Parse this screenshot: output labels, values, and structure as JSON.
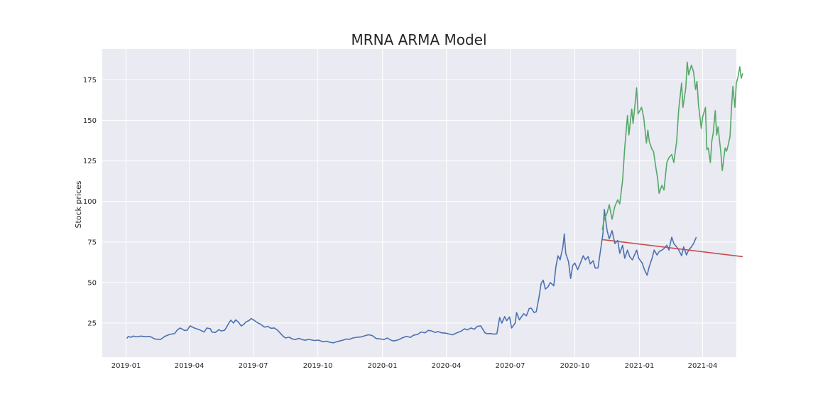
{
  "chart_data": {
    "type": "line",
    "title": "MRNA ARMA Model",
    "xlabel": "",
    "ylabel": "Stock prices",
    "x_axis": "date",
    "xlim": [
      "2018-11-28",
      "2021-05-19"
    ],
    "ylim": [
      4.0,
      194.0
    ],
    "y_ticks": [
      25,
      50,
      75,
      100,
      125,
      150,
      175
    ],
    "x_ticks": [
      "2019-01",
      "2019-04",
      "2019-07",
      "2019-10",
      "2020-01",
      "2020-04",
      "2020-07",
      "2020-10",
      "2021-01",
      "2021-04"
    ],
    "grid": true,
    "background": "#EAEAF2",
    "series": [
      {
        "color": "#4C72B0",
        "points": [
          [
            "2019-01-02",
            15.5
          ],
          [
            "2019-01-04",
            16.8
          ],
          [
            "2019-01-08",
            16.2
          ],
          [
            "2019-01-11",
            17.0
          ],
          [
            "2019-01-16",
            16.5
          ],
          [
            "2019-01-22",
            17.0
          ],
          [
            "2019-01-28",
            16.6
          ],
          [
            "2019-02-04",
            16.8
          ],
          [
            "2019-02-11",
            15.2
          ],
          [
            "2019-02-19",
            14.9
          ],
          [
            "2019-02-25",
            16.8
          ],
          [
            "2019-03-04",
            18.0
          ],
          [
            "2019-03-11",
            18.6
          ],
          [
            "2019-03-15",
            20.8
          ],
          [
            "2019-03-19",
            22.0
          ],
          [
            "2019-03-25",
            20.5
          ],
          [
            "2019-03-29",
            20.6
          ],
          [
            "2019-04-02",
            23.3
          ],
          [
            "2019-04-08",
            22.0
          ],
          [
            "2019-04-15",
            21.0
          ],
          [
            "2019-04-22",
            19.5
          ],
          [
            "2019-04-26",
            22.0
          ],
          [
            "2019-05-01",
            21.5
          ],
          [
            "2019-05-03",
            19.5
          ],
          [
            "2019-05-08",
            19.2
          ],
          [
            "2019-05-13",
            21.0
          ],
          [
            "2019-05-16",
            20.2
          ],
          [
            "2019-05-21",
            20.5
          ],
          [
            "2019-05-23",
            21.8
          ],
          [
            "2019-05-28",
            25.5
          ],
          [
            "2019-05-30",
            26.8
          ],
          [
            "2019-06-03",
            25.0
          ],
          [
            "2019-06-06",
            27.0
          ],
          [
            "2019-06-10",
            25.5
          ],
          [
            "2019-06-14",
            23.2
          ],
          [
            "2019-06-18",
            24.5
          ],
          [
            "2019-06-21",
            25.8
          ],
          [
            "2019-06-25",
            26.6
          ],
          [
            "2019-06-28",
            27.8
          ],
          [
            "2019-07-03",
            26.5
          ],
          [
            "2019-07-08",
            25.0
          ],
          [
            "2019-07-12",
            24.2
          ],
          [
            "2019-07-17",
            22.5
          ],
          [
            "2019-07-22",
            23.0
          ],
          [
            "2019-07-26",
            21.8
          ],
          [
            "2019-07-31",
            22.0
          ],
          [
            "2019-08-05",
            20.5
          ],
          [
            "2019-08-08",
            19.0
          ],
          [
            "2019-08-13",
            16.8
          ],
          [
            "2019-08-16",
            15.8
          ],
          [
            "2019-08-21",
            16.3
          ],
          [
            "2019-08-26",
            15.2
          ],
          [
            "2019-08-30",
            14.8
          ],
          [
            "2019-09-04",
            15.6
          ],
          [
            "2019-09-09",
            14.8
          ],
          [
            "2019-09-13",
            14.4
          ],
          [
            "2019-09-18",
            15.0
          ],
          [
            "2019-09-23",
            14.5
          ],
          [
            "2019-09-27",
            14.3
          ],
          [
            "2019-10-02",
            14.5
          ],
          [
            "2019-10-08",
            13.5
          ],
          [
            "2019-10-14",
            13.8
          ],
          [
            "2019-10-18",
            13.2
          ],
          [
            "2019-10-23",
            12.8
          ],
          [
            "2019-10-28",
            13.5
          ],
          [
            "2019-11-01",
            14.0
          ],
          [
            "2019-11-06",
            14.5
          ],
          [
            "2019-11-11",
            15.2
          ],
          [
            "2019-11-15",
            15.0
          ],
          [
            "2019-11-20",
            15.8
          ],
          [
            "2019-11-25",
            16.2
          ],
          [
            "2019-12-02",
            16.5
          ],
          [
            "2019-12-09",
            17.5
          ],
          [
            "2019-12-13",
            17.8
          ],
          [
            "2019-12-18",
            17.2
          ],
          [
            "2019-12-23",
            15.5
          ],
          [
            "2019-12-30",
            15.2
          ],
          [
            "2020-01-03",
            14.8
          ],
          [
            "2020-01-08",
            15.8
          ],
          [
            "2020-01-13",
            14.5
          ],
          [
            "2020-01-17",
            14.0
          ],
          [
            "2020-01-23",
            14.6
          ],
          [
            "2020-01-29",
            15.8
          ],
          [
            "2020-02-04",
            16.8
          ],
          [
            "2020-02-10",
            16.2
          ],
          [
            "2020-02-14",
            17.5
          ],
          [
            "2020-02-20",
            18.0
          ],
          [
            "2020-02-25",
            19.5
          ],
          [
            "2020-03-02",
            19.0
          ],
          [
            "2020-03-06",
            20.5
          ],
          [
            "2020-03-11",
            20.2
          ],
          [
            "2020-03-16",
            19.2
          ],
          [
            "2020-03-20",
            19.8
          ],
          [
            "2020-03-25",
            19.0
          ],
          [
            "2020-03-31",
            18.8
          ],
          [
            "2020-04-06",
            18.2
          ],
          [
            "2020-04-10",
            17.8
          ],
          [
            "2020-04-16",
            19.0
          ],
          [
            "2020-04-22",
            20.0
          ],
          [
            "2020-04-27",
            21.5
          ],
          [
            "2020-05-01",
            20.8
          ],
          [
            "2020-05-06",
            22.0
          ],
          [
            "2020-05-11",
            21.2
          ],
          [
            "2020-05-15",
            23.0
          ],
          [
            "2020-05-20",
            23.3
          ],
          [
            "2020-05-26",
            19.0
          ],
          [
            "2020-05-29",
            18.5
          ],
          [
            "2020-06-03",
            18.6
          ],
          [
            "2020-06-08",
            18.2
          ],
          [
            "2020-06-12",
            18.5
          ],
          [
            "2020-06-16",
            28.5
          ],
          [
            "2020-06-19",
            25.0
          ],
          [
            "2020-06-23",
            29.0
          ],
          [
            "2020-06-26",
            26.5
          ],
          [
            "2020-06-30",
            28.8
          ],
          [
            "2020-07-03",
            22.0
          ],
          [
            "2020-07-08",
            25.0
          ],
          [
            "2020-07-10",
            31.5
          ],
          [
            "2020-07-14",
            27.0
          ],
          [
            "2020-07-20",
            30.8
          ],
          [
            "2020-07-24",
            29.5
          ],
          [
            "2020-07-28",
            34.0
          ],
          [
            "2020-07-31",
            34.2
          ],
          [
            "2020-08-04",
            31.5
          ],
          [
            "2020-08-07",
            32.0
          ],
          [
            "2020-08-11",
            41.0
          ],
          [
            "2020-08-14",
            49.5
          ],
          [
            "2020-08-17",
            51.5
          ],
          [
            "2020-08-20",
            46.0
          ],
          [
            "2020-08-24",
            47.5
          ],
          [
            "2020-08-27",
            50.0
          ],
          [
            "2020-09-01",
            48.0
          ],
          [
            "2020-09-04",
            59.5
          ],
          [
            "2020-09-07",
            66.5
          ],
          [
            "2020-09-10",
            64.0
          ],
          [
            "2020-09-14",
            72.0
          ],
          [
            "2020-09-16",
            80.0
          ],
          [
            "2020-09-18",
            68.0
          ],
          [
            "2020-09-22",
            63.0
          ],
          [
            "2020-09-25",
            52.5
          ],
          [
            "2020-09-28",
            60.5
          ],
          [
            "2020-10-01",
            62.0
          ],
          [
            "2020-10-05",
            58.0
          ],
          [
            "2020-10-08",
            61.0
          ],
          [
            "2020-10-13",
            66.5
          ],
          [
            "2020-10-16",
            64.0
          ],
          [
            "2020-10-20",
            66.0
          ],
          [
            "2020-10-23",
            61.5
          ],
          [
            "2020-10-27",
            63.5
          ],
          [
            "2020-10-30",
            59.0
          ],
          [
            "2020-11-03",
            59.0
          ],
          [
            "2020-11-06",
            68.0
          ],
          [
            "2020-11-10",
            80.0
          ],
          [
            "2020-11-12",
            95.0
          ],
          [
            "2020-11-16",
            82.0
          ],
          [
            "2020-11-19",
            77.0
          ],
          [
            "2020-11-23",
            82.0
          ],
          [
            "2020-11-27",
            74.0
          ],
          [
            "2020-12-01",
            76.0
          ],
          [
            "2020-12-04",
            68.0
          ],
          [
            "2020-12-08",
            73.0
          ],
          [
            "2020-12-11",
            65.0
          ],
          [
            "2020-12-15",
            70.0
          ],
          [
            "2020-12-18",
            66.0
          ],
          [
            "2020-12-22",
            64.0
          ],
          [
            "2020-12-28",
            70.0
          ],
          [
            "2020-12-31",
            65.0
          ],
          [
            "2021-01-05",
            62.0
          ],
          [
            "2021-01-08",
            58.0
          ],
          [
            "2021-01-12",
            54.5
          ],
          [
            "2021-01-15",
            60.0
          ],
          [
            "2021-01-19",
            65.0
          ],
          [
            "2021-01-22",
            70.0
          ],
          [
            "2021-01-26",
            67.0
          ],
          [
            "2021-01-29",
            69.0
          ],
          [
            "2021-02-02",
            70.0
          ],
          [
            "2021-02-05",
            71.0
          ],
          [
            "2021-02-09",
            73.0
          ],
          [
            "2021-02-12",
            70.0
          ],
          [
            "2021-02-16",
            78.0
          ],
          [
            "2021-02-19",
            74.0
          ],
          [
            "2021-02-23",
            72.0
          ],
          [
            "2021-02-26",
            70.0
          ],
          [
            "2021-03-02",
            66.5
          ],
          [
            "2021-03-05",
            72.0
          ],
          [
            "2021-03-09",
            67.0
          ],
          [
            "2021-03-12",
            70.0
          ],
          [
            "2021-03-16",
            72.0
          ],
          [
            "2021-03-19",
            74.0
          ],
          [
            "2021-03-23",
            78.0
          ]
        ]
      },
      {
        "color": "#55A868",
        "points": [
          [
            "2020-11-09",
            82.5
          ],
          [
            "2020-11-12",
            89.0
          ],
          [
            "2020-11-16",
            93.0
          ],
          [
            "2020-11-19",
            98.0
          ],
          [
            "2020-11-23",
            89.0
          ],
          [
            "2020-11-27",
            97.0
          ],
          [
            "2020-12-01",
            101.0
          ],
          [
            "2020-12-04",
            98.5
          ],
          [
            "2020-12-08",
            113.0
          ],
          [
            "2020-12-11",
            133.0
          ],
          [
            "2020-12-15",
            153.0
          ],
          [
            "2020-12-17",
            141.0
          ],
          [
            "2020-12-21",
            157.0
          ],
          [
            "2020-12-23",
            148.0
          ],
          [
            "2020-12-28",
            170.0
          ],
          [
            "2020-12-30",
            154.0
          ],
          [
            "2021-01-04",
            158.0
          ],
          [
            "2021-01-07",
            152.0
          ],
          [
            "2021-01-11",
            136.0
          ],
          [
            "2021-01-13",
            144.0
          ],
          [
            "2021-01-15",
            137.0
          ],
          [
            "2021-01-19",
            132.0
          ],
          [
            "2021-01-21",
            131.0
          ],
          [
            "2021-01-25",
            119.0
          ],
          [
            "2021-01-27",
            114.0
          ],
          [
            "2021-01-29",
            105.0
          ],
          [
            "2021-02-02",
            110.0
          ],
          [
            "2021-02-05",
            107.0
          ],
          [
            "2021-02-09",
            124.0
          ],
          [
            "2021-02-12",
            127.0
          ],
          [
            "2021-02-16",
            129.0
          ],
          [
            "2021-02-19",
            124.0
          ],
          [
            "2021-02-23",
            137.0
          ],
          [
            "2021-02-26",
            157.0
          ],
          [
            "2021-03-02",
            173.0
          ],
          [
            "2021-03-04",
            158.0
          ],
          [
            "2021-03-08",
            170.0
          ],
          [
            "2021-03-10",
            186.0
          ],
          [
            "2021-03-12",
            178.0
          ],
          [
            "2021-03-16",
            184.0
          ],
          [
            "2021-03-19",
            180.0
          ],
          [
            "2021-03-22",
            169.0
          ],
          [
            "2021-03-24",
            174.0
          ],
          [
            "2021-03-26",
            160.0
          ],
          [
            "2021-03-30",
            145.0
          ],
          [
            "2021-04-01",
            152.0
          ],
          [
            "2021-04-05",
            158.0
          ],
          [
            "2021-04-07",
            132.0
          ],
          [
            "2021-04-09",
            133.0
          ],
          [
            "2021-04-12",
            124.0
          ],
          [
            "2021-04-14",
            137.0
          ],
          [
            "2021-04-16",
            142.0
          ],
          [
            "2021-04-19",
            156.0
          ],
          [
            "2021-04-21",
            141.0
          ],
          [
            "2021-04-23",
            146.0
          ],
          [
            "2021-04-27",
            130.0
          ],
          [
            "2021-04-29",
            119.0
          ],
          [
            "2021-05-03",
            133.0
          ],
          [
            "2021-05-05",
            131.0
          ],
          [
            "2021-05-07",
            134.0
          ],
          [
            "2021-05-10",
            140.0
          ],
          [
            "2021-05-12",
            157.0
          ],
          [
            "2021-05-14",
            171.0
          ],
          [
            "2021-05-17",
            158.0
          ],
          [
            "2021-05-19",
            173.0
          ],
          [
            "2021-05-21",
            176.0
          ],
          [
            "2021-05-24",
            183.0
          ],
          [
            "2021-05-26",
            176.0
          ],
          [
            "2021-05-28",
            179.0
          ]
        ]
      },
      {
        "color": "#C44E52",
        "points": [
          [
            "2020-11-09",
            76.5
          ],
          [
            "2021-05-28",
            66.0
          ]
        ]
      }
    ]
  }
}
